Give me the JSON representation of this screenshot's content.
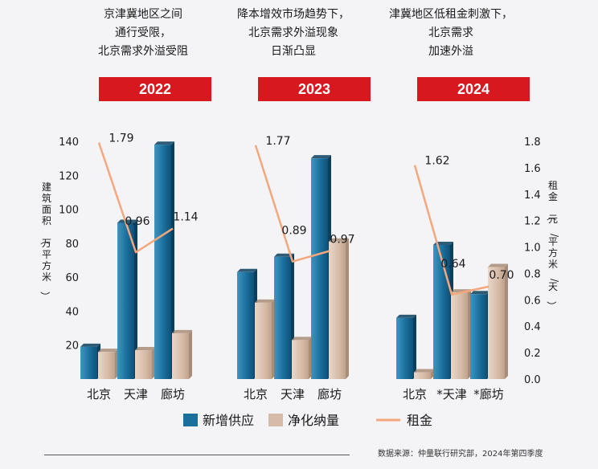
{
  "panels": [
    {
      "subtitle": "京津冀地区之间\n通行受限，\n北京需求外溢受阻",
      "year": "2022"
    },
    {
      "subtitle": "降本增效市场趋势下，\n北京需求外溢现象\n日渐凸显",
      "year": "2023"
    },
    {
      "subtitle": "津冀地区低租金刺激下，\n北京需求\n加速外溢",
      "year": "2024"
    }
  ],
  "chart_data": {
    "type": "bar",
    "groups": [
      {
        "year": "2022",
        "categories": [
          "北京",
          "天津",
          "廊坊"
        ],
        "new_supply": [
          19,
          92,
          138
        ],
        "net_absorption": [
          16,
          17,
          27
        ],
        "rent": [
          1.79,
          0.96,
          1.14
        ],
        "rent_labels": [
          "1.79",
          "0.96",
          "1.14"
        ]
      },
      {
        "year": "2023",
        "categories": [
          "北京",
          "天津",
          "廊坊"
        ],
        "new_supply": [
          63,
          72,
          130
        ],
        "net_absorption": [
          45,
          23,
          81
        ],
        "rent": [
          1.77,
          0.89,
          0.97
        ],
        "rent_labels": [
          "1.77",
          "0.89",
          "0.97"
        ]
      },
      {
        "year": "2024",
        "categories": [
          "北京",
          "*天津",
          "*廊坊"
        ],
        "new_supply": [
          36,
          79,
          50
        ],
        "net_absorption": [
          4,
          51,
          66
        ],
        "rent": [
          1.62,
          0.64,
          0.7
        ],
        "rent_labels": [
          "1.62",
          "0.64",
          "0.70"
        ]
      }
    ],
    "y_left": {
      "label": "建筑面积（万平方米）",
      "min": 0,
      "max": 140,
      "ticks": [
        20,
        40,
        60,
        80,
        100,
        120,
        140
      ]
    },
    "y_right": {
      "label": "租金（元/平方米/天）",
      "min": 0,
      "max": 1.8,
      "ticks": [
        "0.0",
        "0.2",
        "0.4",
        "0.6",
        "0.8",
        "1.0",
        "1.2",
        "1.4",
        "1.6",
        "1.8"
      ]
    },
    "legend": [
      {
        "name": "新增供应",
        "color": "#1a6f9b"
      },
      {
        "name": "净化纳量",
        "color": "#d6bca8"
      },
      {
        "name": "租金",
        "color": "#f4a77c"
      }
    ]
  },
  "source": "数据来源：仲量联行研究部，2024年第四季度"
}
